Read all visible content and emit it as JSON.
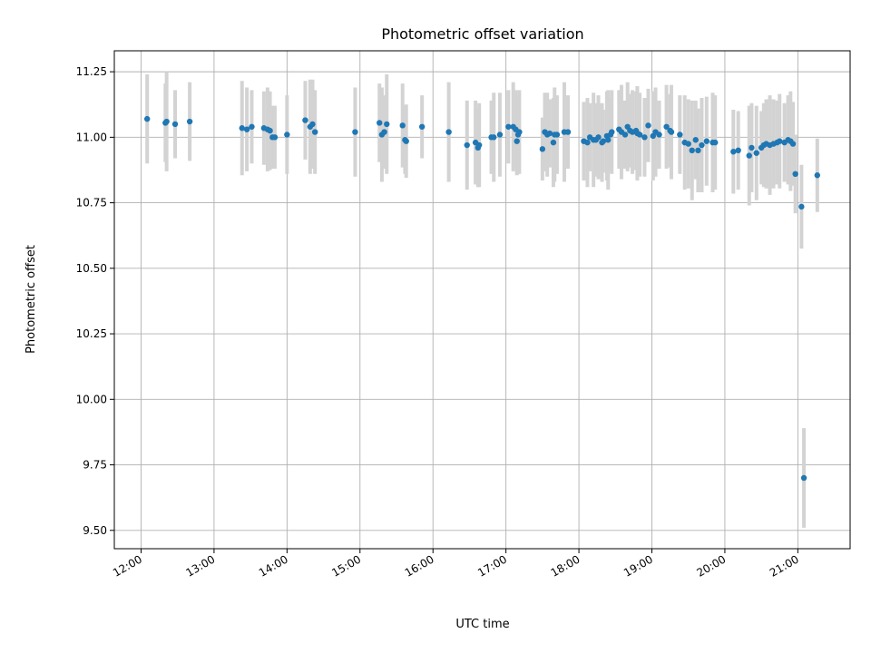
{
  "chart_data": {
    "type": "scatter",
    "title": "Photometric offset variation",
    "xlabel": "UTC time",
    "ylabel": "Photometric offset",
    "xlim": [
      "11:38",
      "21:43"
    ],
    "ylim": [
      9.43,
      11.33
    ],
    "x_ticks": [
      "12:00",
      "13:00",
      "14:00",
      "15:00",
      "16:00",
      "17:00",
      "18:00",
      "19:00",
      "20:00",
      "21:00"
    ],
    "y_ticks": [
      "9.50",
      "9.75",
      "10.00",
      "10.25",
      "10.50",
      "10.75",
      "11.00",
      "11.25"
    ],
    "grid": true,
    "colors": {
      "point": "#1f77b4",
      "errorbar": "#d3d3d3"
    },
    "series": [
      {
        "x": [
          "12:05",
          "12:20",
          "12:21",
          "12:28",
          "12:40",
          "13:23",
          "13:27",
          "13:31",
          "13:41",
          "13:44",
          "13:46",
          "13:48",
          "13:50",
          "14:00",
          "14:15",
          "14:19",
          "14:21",
          "14:23",
          "14:56",
          "15:16",
          "15:18",
          "15:20",
          "15:22",
          "15:35",
          "15:37",
          "15:38",
          "15:51",
          "16:13",
          "16:28",
          "16:35",
          "16:37",
          "16:38",
          "16:48",
          "16:50",
          "16:55",
          "17:02",
          "17:06",
          "17:08",
          "17:09",
          "17:10",
          "17:11",
          "17:30",
          "17:32",
          "17:34",
          "17:36",
          "17:39",
          "17:40",
          "17:42",
          "17:48",
          "17:51",
          "18:04",
          "18:07",
          "18:09",
          "18:12",
          "18:14",
          "18:16",
          "18:19",
          "18:20",
          "18:23",
          "18:24",
          "18:26",
          "18:27",
          "18:33",
          "18:35",
          "18:38",
          "18:40",
          "18:42",
          "18:44",
          "18:47",
          "18:48",
          "18:50",
          "18:54",
          "18:57",
          "19:01",
          "19:03",
          "19:06",
          "19:12",
          "19:15",
          "19:16",
          "19:23",
          "19:27",
          "19:30",
          "19:33",
          "19:36",
          "19:38",
          "19:41",
          "19:45",
          "19:50",
          "19:52",
          "20:07",
          "20:11",
          "20:20",
          "20:22",
          "20:26",
          "20:30",
          "20:32",
          "20:34",
          "20:37",
          "20:40",
          "20:43",
          "20:45",
          "20:49",
          "20:52",
          "20:54",
          "20:56",
          "20:58",
          "21:03",
          "21:05",
          "21:16"
        ],
        "y": [
          11.07,
          11.055,
          11.06,
          11.05,
          11.06,
          11.035,
          11.03,
          11.04,
          11.035,
          11.03,
          11.025,
          11.0,
          11.0,
          11.01,
          11.065,
          11.04,
          11.05,
          11.02,
          11.02,
          11.055,
          11.01,
          11.02,
          11.05,
          11.045,
          10.99,
          10.985,
          11.04,
          11.02,
          10.97,
          10.98,
          10.96,
          10.97,
          11.0,
          11.0,
          11.01,
          11.04,
          11.04,
          11.03,
          10.985,
          11.01,
          11.02,
          10.955,
          11.02,
          11.01,
          11.015,
          10.98,
          11.01,
          11.01,
          11.02,
          11.02,
          10.985,
          10.98,
          11.0,
          10.99,
          10.99,
          11.0,
          10.98,
          10.985,
          11.005,
          10.99,
          11.01,
          11.02,
          11.03,
          11.02,
          11.01,
          11.04,
          11.025,
          11.02,
          11.025,
          11.015,
          11.01,
          11.0,
          11.045,
          11.005,
          11.02,
          11.01,
          11.04,
          11.025,
          11.02,
          11.01,
          10.98,
          10.975,
          10.95,
          10.99,
          10.95,
          10.97,
          10.985,
          10.98,
          10.98,
          10.945,
          10.95,
          10.93,
          10.96,
          10.94,
          10.96,
          10.97,
          10.975,
          10.97,
          10.975,
          10.98,
          10.985,
          10.98,
          10.99,
          10.985,
          10.975,
          10.86,
          10.735,
          9.7,
          10.855
        ],
        "yerr": [
          0.17,
          0.15,
          0.19,
          0.13,
          0.15,
          0.18,
          0.16,
          0.14,
          0.14,
          0.16,
          0.15,
          0.12,
          0.12,
          0.15,
          0.15,
          0.18,
          0.17,
          0.16,
          0.17,
          0.15,
          0.18,
          0.14,
          0.19,
          0.16,
          0.13,
          0.14,
          0.12,
          0.19,
          0.17,
          0.16,
          0.15,
          0.16,
          0.14,
          0.17,
          0.16,
          0.14,
          0.17,
          0.15,
          0.13,
          0.15,
          0.16,
          0.12,
          0.15,
          0.16,
          0.13,
          0.17,
          0.18,
          0.15,
          0.19,
          0.14,
          0.15,
          0.17,
          0.13,
          0.18,
          0.14,
          0.16,
          0.15,
          0.12,
          0.17,
          0.19,
          0.14,
          0.16,
          0.15,
          0.18,
          0.13,
          0.17,
          0.14,
          0.16,
          0.15,
          0.18,
          0.16,
          0.15,
          0.14,
          0.17,
          0.17,
          0.13,
          0.16,
          0.14,
          0.18,
          0.15,
          0.18,
          0.17,
          0.19,
          0.15,
          0.16,
          0.18,
          0.17,
          0.19,
          0.18,
          0.16,
          0.15,
          0.19,
          0.17,
          0.18,
          0.14,
          0.16,
          0.17,
          0.19,
          0.17,
          0.16,
          0.18,
          0.15,
          0.17,
          0.19,
          0.16,
          0.15,
          0.16,
          0.19,
          0.14
        ]
      }
    ]
  }
}
